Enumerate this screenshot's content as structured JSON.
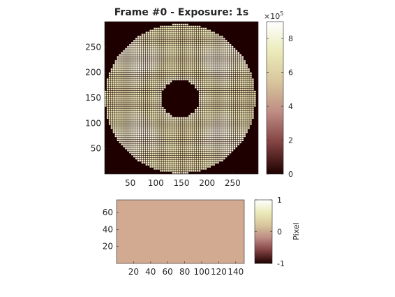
{
  "window": {
    "background": "#ffffff"
  },
  "colormap": {
    "name": "pink",
    "stops": [
      "#1e0000",
      "#804040",
      "#bd8a82",
      "#d8c59c",
      "#eaeab8",
      "#ffffff"
    ]
  },
  "chart_data": [
    {
      "type": "heatmap",
      "title": "Frame #0 - Exposure: 1s",
      "xlabel": "",
      "ylabel": "",
      "xlim": [
        0,
        300
      ],
      "ylim": [
        0,
        300
      ],
      "x_ticks": [
        "50",
        "100",
        "150",
        "200",
        "250"
      ],
      "y_ticks": [
        "50",
        "100",
        "150",
        "200",
        "250"
      ],
      "image": {
        "description_values": {
          "outer_disk_radius": 147,
          "central_obstruction_radius": 37,
          "grid_pitch": 4,
          "grid_line_value": 20000,
          "cell_value_range": [
            600000,
            900000
          ],
          "background_value": 0
        }
      },
      "colorbar": {
        "exponent_label": "×10",
        "exponent_power": "5",
        "range": [
          0,
          9
        ],
        "ticks": [
          "0",
          "2",
          "4",
          "6",
          "8"
        ],
        "label": ""
      }
    },
    {
      "type": "heatmap",
      "title": "",
      "xlim": [
        0,
        150
      ],
      "ylim": [
        0,
        75
      ],
      "x_ticks": [
        "20",
        "40",
        "60",
        "80",
        "100",
        "120",
        "140"
      ],
      "y_ticks": [
        "20",
        "40",
        "60"
      ],
      "image": {
        "uniform_value": 0,
        "fill_color": "#d2aa92"
      },
      "colorbar": {
        "range": [
          -1,
          1
        ],
        "ticks": [
          "1",
          "0",
          "-1"
        ],
        "label": "Pixel"
      }
    }
  ]
}
